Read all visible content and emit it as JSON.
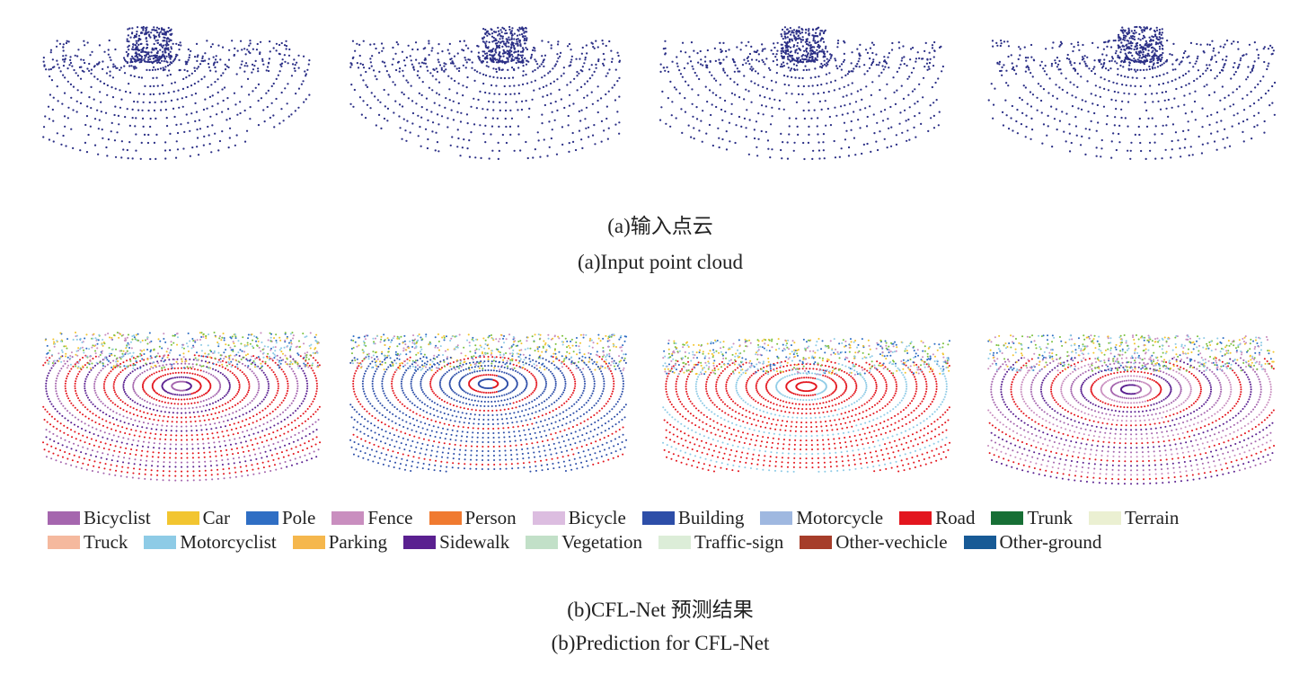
{
  "panel_a": {
    "caption_cn": "(a)输入点云",
    "caption_en": "(a)Input point cloud"
  },
  "panel_b": {
    "legend": [
      [
        {
          "name": "Bicyclist",
          "color": "#a566ae"
        },
        {
          "name": "Car",
          "color": "#f2c530"
        },
        {
          "name": "Pole",
          "color": "#2f6ec4"
        },
        {
          "name": "Fence",
          "color": "#c98ebf"
        },
        {
          "name": "Person",
          "color": "#f07a30"
        },
        {
          "name": "Bicycle",
          "color": "#dcbde0"
        },
        {
          "name": "Building",
          "color": "#2d4ea8"
        },
        {
          "name": "Motorcycle",
          "color": "#9fb8e0"
        },
        {
          "name": "Road",
          "color": "#e3161e"
        },
        {
          "name": "Trunk",
          "color": "#176f35"
        },
        {
          "name": "Terrain",
          "color": "#ebf0d2"
        }
      ],
      [
        {
          "name": "Truck",
          "color": "#f5b99e"
        },
        {
          "name": "Motorcyclist",
          "color": "#8ecbe6"
        },
        {
          "name": "Parking",
          "color": "#f5b74d"
        },
        {
          "name": "Sidewalk",
          "color": "#5a2090"
        },
        {
          "name": "Vegetation",
          "color": "#c2e0c8"
        },
        {
          "name": "Traffic-sign",
          "color": "#dcedd8"
        },
        {
          "name": "Other-vechicle",
          "color": "#a63d2a"
        },
        {
          "name": "Other-ground",
          "color": "#175a96"
        }
      ]
    ],
    "caption_cn": "(b)CFL-Net 预测结果",
    "caption_en": "(b)Prediction for CFL-Net"
  }
}
